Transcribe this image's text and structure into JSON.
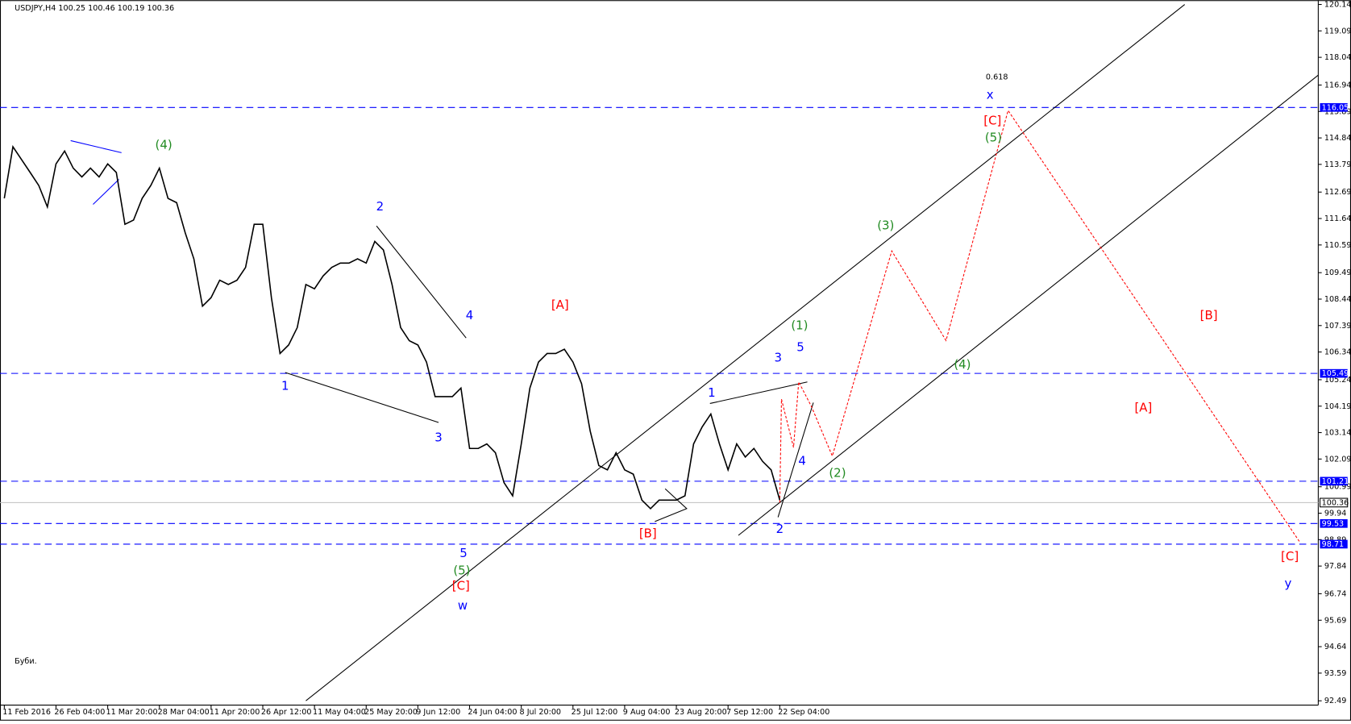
{
  "chart_data": {
    "type": "line",
    "title": "USDJPY,H4  100.25 100.46 100.19 100.36",
    "note": "Буби.",
    "categories": [
      "11 Feb 2016",
      null,
      null,
      null,
      null,
      null,
      "26 Feb 04:00",
      null,
      null,
      null,
      null,
      null,
      "11 Mar 20:00",
      null,
      null,
      null,
      null,
      null,
      "28 Mar 04:00",
      null,
      null,
      null,
      null,
      null,
      "11 Apr 20:00",
      null,
      null,
      null,
      null,
      null,
      "26 Apr 12:00",
      null,
      null,
      null,
      null,
      null,
      "11 May 04:00",
      null,
      null,
      null,
      null,
      null,
      "25 May 20:00",
      null,
      null,
      null,
      null,
      null,
      "9 Jun 12:00",
      null,
      null,
      null,
      null,
      null,
      "24 Jun 04:00",
      null,
      null,
      null,
      null,
      null,
      "8 Jul 20:00",
      null,
      null,
      null,
      null,
      null,
      "25 Jul 12:00",
      null,
      null,
      null,
      null,
      null,
      "9 Aug 04:00",
      null,
      null,
      null,
      null,
      null,
      "23 Aug 20:00",
      null,
      null,
      null,
      null,
      null,
      "7 Sep 12:00",
      null,
      null,
      null,
      null,
      null,
      "22 Sep 04:00"
    ],
    "values": [
      112.44,
      114.49,
      113.98,
      113.47,
      112.95,
      112.1,
      113.81,
      114.32,
      113.64,
      113.29,
      113.64,
      113.29,
      113.81,
      113.47,
      111.41,
      111.58,
      112.44,
      112.95,
      113.64,
      112.44,
      112.27,
      111.07,
      110.04,
      108.16,
      108.5,
      109.19,
      109.02,
      109.19,
      109.7,
      111.41,
      111.41,
      108.5,
      106.28,
      106.62,
      107.31,
      109.02,
      108.85,
      109.36,
      109.7,
      109.87,
      109.87,
      110.04,
      109.87,
      110.73,
      110.39,
      109.02,
      107.31,
      106.79,
      106.62,
      105.94,
      104.57,
      104.57,
      104.57,
      104.91,
      102.51,
      102.51,
      102.69,
      102.34,
      101.15,
      100.63,
      102.69,
      104.91,
      105.94,
      106.28,
      106.28,
      106.45,
      105.94,
      105.08,
      103.2,
      101.83,
      101.66,
      102.34,
      101.66,
      101.49,
      100.46,
      100.12,
      100.46,
      100.46,
      100.46,
      100.63,
      102.69,
      103.37,
      103.88,
      102.69,
      101.66,
      102.69,
      102.17,
      102.51,
      102.0,
      101.66,
      100.46
    ],
    "color": "#000000",
    "ylim": [
      92.32,
      120.31
    ],
    "yticks": [
      120.14,
      119.09,
      118.04,
      116.94,
      115.89,
      114.84,
      113.79,
      112.69,
      111.64,
      110.59,
      109.49,
      108.44,
      107.39,
      106.34,
      105.24,
      104.19,
      103.14,
      102.09,
      100.99,
      99.94,
      98.89,
      97.84,
      96.74,
      95.69,
      94.64,
      93.59,
      92.49
    ],
    "levels": [
      {
        "value": 116.05,
        "color": "#0000ff"
      },
      {
        "value": 105.49,
        "color": "#0000ff"
      },
      {
        "value": 101.21,
        "color": "#0000ff"
      },
      {
        "value": 99.53,
        "color": "#0000ff"
      },
      {
        "value": 98.71,
        "color": "#0000ff"
      }
    ],
    "current_price": 100.36,
    "annotations": [
      {
        "text": "(4)",
        "color": "#228b22"
      },
      {
        "text": "2",
        "color": "#0000ff"
      },
      {
        "text": "4",
        "color": "#0000ff"
      },
      {
        "text": "1",
        "color": "#0000ff"
      },
      {
        "text": "3",
        "color": "#0000ff"
      },
      {
        "text": "5",
        "color": "#0000ff"
      },
      {
        "text": "(5)",
        "color": "#228b22"
      },
      {
        "text": "[C]",
        "color": "#ff0000"
      },
      {
        "text": "w",
        "color": "#0000ff"
      },
      {
        "text": "[A]",
        "color": "#ff0000"
      },
      {
        "text": "[B]",
        "color": "#ff0000"
      },
      {
        "text": "1",
        "color": "#0000ff"
      },
      {
        "text": "3",
        "color": "#0000ff"
      },
      {
        "text": "5",
        "color": "#0000ff"
      },
      {
        "text": "(1)",
        "color": "#228b22"
      },
      {
        "text": "4",
        "color": "#0000ff"
      },
      {
        "text": "2",
        "color": "#0000ff"
      },
      {
        "text": "(2)",
        "color": "#228b22"
      },
      {
        "text": "(3)",
        "color": "#228b22"
      },
      {
        "text": "(4)",
        "color": "#228b22"
      },
      {
        "text": "(5)",
        "color": "#228b22"
      },
      {
        "text": "[C]",
        "color": "#ff0000"
      },
      {
        "text": "x",
        "color": "#0000ff"
      },
      {
        "text": "0.618",
        "color": "#000000"
      },
      {
        "text": "[B]",
        "color": "#ff0000"
      },
      {
        "text": "[A]",
        "color": "#ff0000"
      },
      {
        "text": "[C]",
        "color": "#ff0000"
      },
      {
        "text": "y",
        "color": "#0000ff"
      }
    ]
  }
}
